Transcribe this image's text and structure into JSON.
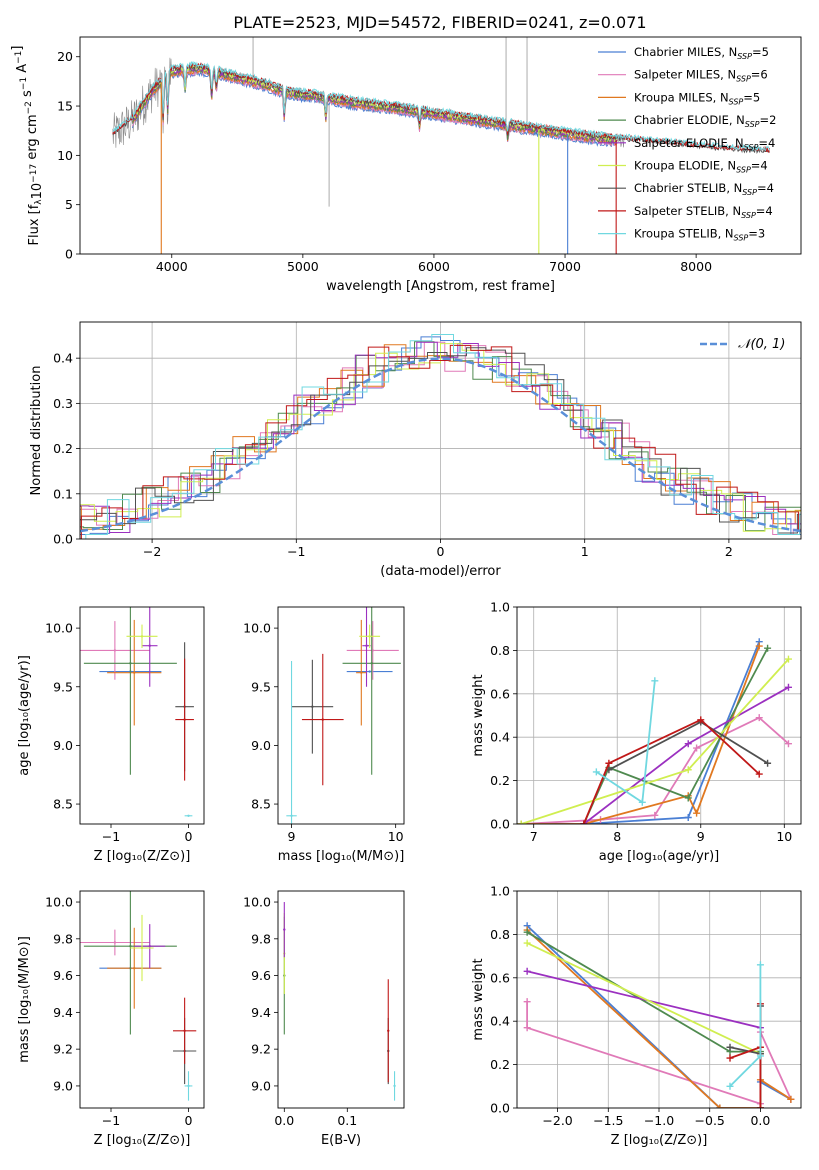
{
  "figure_title": "PLATE=2523, MJD=54572, FIBERID=0241, z=0.071",
  "colors": {
    "chabrier_miles": "#4a7fd4",
    "salpeter_miles": "#e07ab8",
    "kroupa_miles": "#e07820",
    "chabrier_elodie": "#4f8a4f",
    "salpeter_elodie": "#9b30c0",
    "kroupa_elodie": "#d0ee50",
    "chabrier_stelib": "#505050",
    "salpeter_stelib": "#c01818",
    "kroupa_stelib": "#70d8e0",
    "data": "#888888"
  },
  "chart_data": [
    {
      "id": "spectrum",
      "type": "line",
      "xlabel": "wavelength [Angstrom, rest frame]",
      "ylabel_main": "Flux [f",
      "ylabel_tail": "10",
      "ylabel_exp": "−17",
      "ylabel_unit": " erg cm",
      "ylabel_unit_exp": "−2",
      "ylabel_s": " s",
      "ylabel_s_exp": "−1",
      "ylabel_a": " A",
      "ylabel_a_exp": "−1",
      "ylabel_end": "]",
      "xlim": [
        3300,
        8800
      ],
      "ylim": [
        0,
        22
      ],
      "xticks": [
        4000,
        5000,
        6000,
        7000,
        8000
      ],
      "yticks": [
        0,
        5,
        10,
        15,
        20
      ],
      "continuum": {
        "x": [
          3550,
          3700,
          3850,
          4000,
          4200,
          4400,
          4700,
          4900,
          5100,
          5400,
          5700,
          6000,
          6300,
          6600,
          6900,
          7200,
          7500,
          7800,
          8100,
          8400,
          8560
        ],
        "y": [
          12.0,
          13.5,
          16.5,
          18.5,
          18.8,
          18.2,
          17.2,
          16.3,
          16.0,
          15.3,
          14.8,
          14.2,
          13.6,
          13.0,
          12.4,
          11.8,
          11.4,
          11.0,
          10.6,
          10.3,
          10.2
        ]
      },
      "legend": [
        {
          "name": "Chabrier MILES, N",
          "sub": "SSP",
          "tail": "=5",
          "color_key": "chabrier_miles"
        },
        {
          "name": "Salpeter MILES, N",
          "sub": "SSP",
          "tail": "=6",
          "color_key": "salpeter_miles"
        },
        {
          "name": "Kroupa MILES, N",
          "sub": "SSP",
          "tail": "=5",
          "color_key": "kroupa_miles"
        },
        {
          "name": "Chabrier ELODIE, N",
          "sub": "SSP",
          "tail": "=2",
          "color_key": "chabrier_elodie"
        },
        {
          "name": "Salpeter ELODIE, N",
          "sub": "SSP",
          "tail": "=4",
          "color_key": "salpeter_elodie"
        },
        {
          "name": "Kroupa ELODIE, N",
          "sub": "SSP",
          "tail": "=4",
          "color_key": "kroupa_elodie"
        },
        {
          "name": "Chabrier STELIB, N",
          "sub": "SSP",
          "tail": "=4",
          "color_key": "chabrier_stelib"
        },
        {
          "name": "Salpeter STELIB, N",
          "sub": "SSP",
          "tail": "=4",
          "color_key": "salpeter_stelib"
        },
        {
          "name": "Kroupa STELIB, N",
          "sub": "SSP",
          "tail": "=3",
          "color_key": "kroupa_stelib"
        }
      ]
    },
    {
      "id": "residuals",
      "type": "histogram",
      "xlabel": "(data-model)/error",
      "ylabel": "Normed distribution",
      "xlim": [
        -2.5,
        2.5
      ],
      "ylim": [
        0,
        0.48
      ],
      "xticks": [
        -2,
        -1,
        0,
        1,
        2
      ],
      "yticks": [
        0.0,
        0.1,
        0.2,
        0.3,
        0.4
      ],
      "legend_label": "𝒩(0, 1)",
      "grid": true
    },
    {
      "id": "age_vs_Z",
      "type": "errorbar",
      "xlabel": "Z [log₁₀(Z/Z⊙)]",
      "ylabel": "age  [log₁₀(age/yr)]",
      "xlim": [
        -1.4,
        0.2
      ],
      "ylim": [
        8.33,
        10.18
      ],
      "xticks": [
        -1,
        0
      ],
      "yticks": [
        8.5,
        9.0,
        9.5,
        10.0
      ],
      "points": [
        {
          "c": "chabrier_miles",
          "x": -0.75,
          "y": 9.63,
          "xe": 0.4,
          "ye": 0.0
        },
        {
          "c": "salpeter_miles",
          "x": -0.95,
          "y": 9.81,
          "xe": 0.45,
          "ye": 0.25
        },
        {
          "c": "kroupa_miles",
          "x": -0.7,
          "y": 9.62,
          "xe": 0.35,
          "ye": 0.45
        },
        {
          "c": "chabrier_elodie",
          "x": -0.75,
          "y": 9.7,
          "xe": 0.6,
          "ye": 0.95
        },
        {
          "c": "salpeter_elodie",
          "x": -0.5,
          "y": 9.85,
          "xe": 0.1,
          "ye": 0.35
        },
        {
          "c": "kroupa_elodie",
          "x": -0.6,
          "y": 9.93,
          "xe": 0.2,
          "ye": 0.1
        },
        {
          "c": "chabrier_stelib",
          "x": -0.05,
          "y": 9.33,
          "xe": 0.12,
          "ye": 0.55
        },
        {
          "c": "salpeter_stelib",
          "x": -0.05,
          "y": 9.22,
          "xe": 0.12,
          "ye": 0.52
        },
        {
          "c": "kroupa_stelib",
          "x": 0.0,
          "y": 8.4,
          "xe": 0.05,
          "ye": 0.0
        }
      ]
    },
    {
      "id": "age_vs_mass",
      "type": "errorbar",
      "xlabel": "mass [log₁₀(M/M⊙)]",
      "xlim": [
        8.87,
        10.08
      ],
      "ylim": [
        8.33,
        10.18
      ],
      "xticks": [
        9,
        10
      ],
      "yticks": [
        8.5,
        9.0,
        9.5,
        10.0
      ],
      "points": [
        {
          "c": "chabrier_miles",
          "x": 9.75,
          "y": 9.63,
          "xe": 0.22,
          "ye": 0.0
        },
        {
          "c": "salpeter_miles",
          "x": 9.78,
          "y": 9.81,
          "xe": 0.25,
          "ye": 0.25
        },
        {
          "c": "kroupa_miles",
          "x": 9.67,
          "y": 9.62,
          "xe": 0.05,
          "ye": 0.45
        },
        {
          "c": "chabrier_elodie",
          "x": 9.77,
          "y": 9.7,
          "xe": 0.28,
          "ye": 0.95
        },
        {
          "c": "salpeter_elodie",
          "x": 9.72,
          "y": 9.85,
          "xe": 0.04,
          "ye": 0.35
        },
        {
          "c": "kroupa_elodie",
          "x": 9.75,
          "y": 9.93,
          "xe": 0.1,
          "ye": 0.1
        },
        {
          "c": "chabrier_stelib",
          "x": 9.2,
          "y": 9.33,
          "xe": 0.2,
          "ye": 0.4
        },
        {
          "c": "salpeter_stelib",
          "x": 9.3,
          "y": 9.22,
          "xe": 0.2,
          "ye": 0.56
        },
        {
          "c": "kroupa_stelib",
          "x": 9.0,
          "y": 8.4,
          "xe": 0.05,
          "ye": 1.32
        }
      ]
    },
    {
      "id": "mass_weight_vs_age",
      "type": "line",
      "xlabel": "age  [log₁₀(age/yr)]",
      "ylabel": "mass weight",
      "xlim": [
        6.8,
        10.2
      ],
      "ylim": [
        0,
        1.0
      ],
      "xticks": [
        7,
        8,
        9,
        10
      ],
      "yticks": [
        0.0,
        0.2,
        0.4,
        0.6,
        0.8,
        1.0
      ],
      "grid": true,
      "series": [
        {
          "c": "chabrier_miles",
          "x": [
            6.85,
            7.6,
            8.85,
            9.7
          ],
          "y": [
            0.0,
            0.0,
            0.03,
            0.84
          ]
        },
        {
          "c": "salpeter_miles",
          "x": [
            6.85,
            7.8,
            8.45,
            8.95,
            9.7,
            10.05
          ],
          "y": [
            0.0,
            0.02,
            0.04,
            0.35,
            0.49,
            0.37
          ]
        },
        {
          "c": "kroupa_miles",
          "x": [
            6.85,
            7.6,
            8.85,
            8.95,
            9.7
          ],
          "y": [
            0.0,
            0.0,
            0.13,
            0.05,
            0.82
          ]
        },
        {
          "c": "chabrier_elodie",
          "x": [
            7.6,
            7.9,
            8.85,
            9.8
          ],
          "y": [
            0.0,
            0.26,
            0.12,
            0.81
          ]
        },
        {
          "c": "salpeter_elodie",
          "x": [
            7.6,
            8.85,
            10.05
          ],
          "y": [
            0.0,
            0.37,
            0.63
          ]
        },
        {
          "c": "kroupa_elodie",
          "x": [
            6.85,
            8.85,
            10.05
          ],
          "y": [
            0.0,
            0.25,
            0.76
          ]
        },
        {
          "c": "chabrier_stelib",
          "x": [
            7.9,
            9.0,
            9.8
          ],
          "y": [
            0.25,
            0.47,
            0.28
          ]
        },
        {
          "c": "salpeter_stelib",
          "x": [
            7.6,
            7.9,
            9.0,
            9.7
          ],
          "y": [
            0.0,
            0.28,
            0.48,
            0.23
          ]
        },
        {
          "c": "kroupa_stelib",
          "x": [
            7.75,
            8.3,
            8.45
          ],
          "y": [
            0.24,
            0.1,
            0.66
          ]
        }
      ]
    },
    {
      "id": "mass_vs_Z",
      "type": "errorbar",
      "xlabel": "Z [log₁₀(Z/Z⊙)]",
      "ylabel": "mass [log₁₀(M/M⊙)]",
      "xlim": [
        -1.4,
        0.2
      ],
      "ylim": [
        8.88,
        10.06
      ],
      "xticks": [
        -1,
        0
      ],
      "yticks": [
        9.0,
        9.2,
        9.4,
        9.6,
        9.8,
        10.0
      ],
      "points": [
        {
          "c": "chabrier_miles",
          "x": -0.75,
          "y": 9.64,
          "xe": 0.4,
          "ye": 0.0
        },
        {
          "c": "salpeter_miles",
          "x": -0.95,
          "y": 9.78,
          "xe": 0.45,
          "ye": 0.07
        },
        {
          "c": "kroupa_miles",
          "x": -0.7,
          "y": 9.64,
          "xe": 0.35,
          "ye": 0.22
        },
        {
          "c": "chabrier_elodie",
          "x": -0.75,
          "y": 9.76,
          "xe": 0.6,
          "ye": 0.48
        },
        {
          "c": "salpeter_elodie",
          "x": -0.5,
          "y": 9.76,
          "xe": 0.2,
          "ye": 0.12
        },
        {
          "c": "kroupa_elodie",
          "x": -0.6,
          "y": 9.75,
          "xe": 0.15,
          "ye": 0.18
        },
        {
          "c": "chabrier_stelib",
          "x": -0.05,
          "y": 9.19,
          "xe": 0.15,
          "ye": 0.18
        },
        {
          "c": "salpeter_stelib",
          "x": -0.05,
          "y": 9.3,
          "xe": 0.15,
          "ye": 0.18
        },
        {
          "c": "kroupa_stelib",
          "x": 0.0,
          "y": 9.0,
          "xe": 0.05,
          "ye": 0.08
        }
      ]
    },
    {
      "id": "mass_vs_ebv",
      "type": "errorbar",
      "xlabel": "E(B-V)",
      "xlim": [
        -0.01,
        0.19
      ],
      "ylim": [
        8.88,
        10.06
      ],
      "xticks": [
        0.0,
        0.1
      ],
      "yticks": [
        9.0,
        9.2,
        9.4,
        9.6,
        9.8,
        10.0
      ],
      "points": [
        {
          "c": "chabrier_elodie",
          "x": 0.0,
          "y": 9.6,
          "xe": 0.0,
          "ye": 0.32
        },
        {
          "c": "kroupa_elodie",
          "x": 0.0,
          "y": 9.72,
          "xe": 0.0,
          "ye": 0.22
        },
        {
          "c": "salpeter_elodie",
          "x": 0.0,
          "y": 9.85,
          "xe": 0.0,
          "ye": 0.15
        },
        {
          "c": "chabrier_stelib",
          "x": 0.165,
          "y": 9.19,
          "xe": 0.0,
          "ye": 0.18
        },
        {
          "c": "salpeter_stelib",
          "x": 0.165,
          "y": 9.3,
          "xe": 0.0,
          "ye": 0.28
        },
        {
          "c": "kroupa_stelib",
          "x": 0.175,
          "y": 9.0,
          "xe": 0.0,
          "ye": 0.08
        }
      ]
    },
    {
      "id": "mass_weight_vs_Z",
      "type": "line",
      "xlabel": "Z [log₁₀(Z/Z⊙)]",
      "ylabel": "mass weight",
      "xlim": [
        -2.4,
        0.4
      ],
      "ylim": [
        0,
        1.0
      ],
      "xticks": [
        -2.0,
        -1.5,
        -1.0,
        -0.5,
        0.0
      ],
      "yticks": [
        0.0,
        0.2,
        0.4,
        0.6,
        0.8,
        1.0
      ],
      "grid": true,
      "series": [
        {
          "c": "chabrier_miles",
          "x": [
            -2.3,
            -0.4,
            0.0,
            0.0,
            0.3
          ],
          "y": [
            0.84,
            0.0,
            0.0,
            0.12,
            0.04
          ]
        },
        {
          "c": "salpeter_miles",
          "x": [
            -2.3,
            -2.3,
            0.0,
            0.0,
            0.3
          ],
          "y": [
            0.49,
            0.37,
            0.02,
            0.35,
            0.04
          ]
        },
        {
          "c": "kroupa_miles",
          "x": [
            -2.3,
            -0.4,
            0.0,
            0.0,
            0.3
          ],
          "y": [
            0.82,
            0.0,
            0.0,
            0.13,
            0.04
          ]
        },
        {
          "c": "chabrier_elodie",
          "x": [
            -2.3,
            -0.3,
            0.0
          ],
          "y": [
            0.81,
            0.26,
            0.26
          ]
        },
        {
          "c": "salpeter_elodie",
          "x": [
            -2.3,
            0.0,
            0.0
          ],
          "y": [
            0.63,
            0.37,
            0.0
          ]
        },
        {
          "c": "kroupa_elodie",
          "x": [
            -2.3,
            0.0,
            0.0
          ],
          "y": [
            0.76,
            0.25,
            0.0
          ]
        },
        {
          "c": "chabrier_stelib",
          "x": [
            -0.3,
            0.0,
            0.0,
            0.0
          ],
          "y": [
            0.28,
            0.25,
            0.47,
            0.0
          ]
        },
        {
          "c": "salpeter_stelib",
          "x": [
            -0.3,
            0.0,
            0.0,
            0.0
          ],
          "y": [
            0.23,
            0.28,
            0.48,
            0.0
          ]
        },
        {
          "c": "kroupa_stelib",
          "x": [
            -0.3,
            0.0,
            0.0
          ],
          "y": [
            0.1,
            0.24,
            0.66
          ]
        }
      ]
    }
  ]
}
